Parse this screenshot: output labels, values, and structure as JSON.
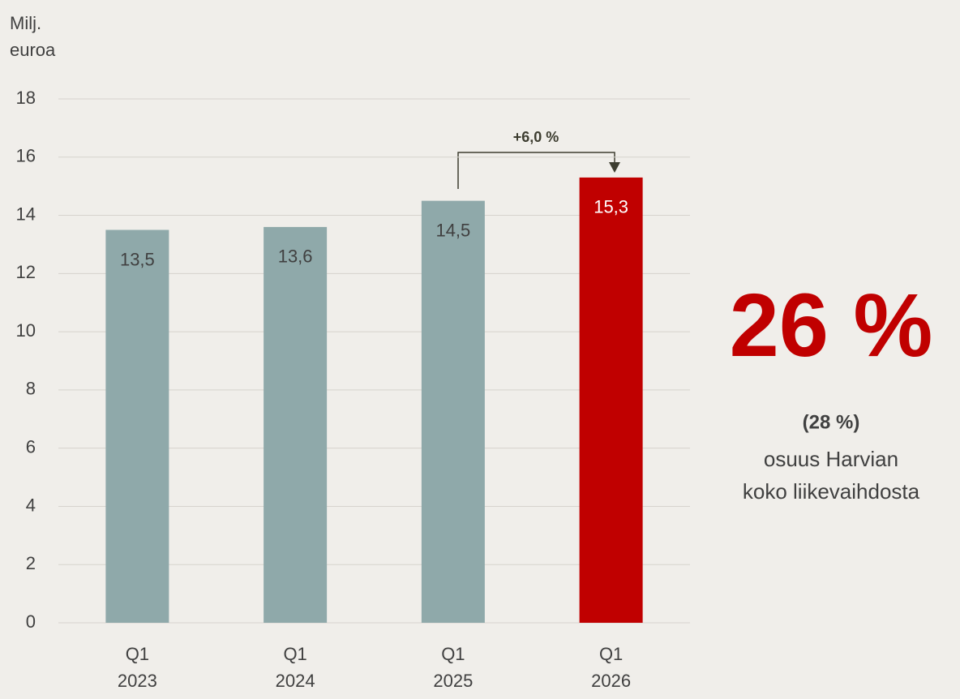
{
  "chart_data": {
    "type": "bar",
    "y_label": "Milj. euroa",
    "categories": [
      "Q1 2023",
      "Q1 2024",
      "Q1 2025",
      "Q1 2026"
    ],
    "values": [
      13.5,
      13.6,
      14.5,
      15.3
    ],
    "value_labels": [
      "13,5",
      "13,6",
      "14,5",
      "15,3"
    ],
    "colors": [
      "#8fa9aa",
      "#8fa9aa",
      "#8fa9aa",
      "#c00000"
    ],
    "ylim": [
      0,
      18
    ],
    "yticks": [
      0,
      2,
      4,
      6,
      8,
      10,
      12,
      14,
      16,
      18
    ],
    "grid": true,
    "annotations": {
      "change": "+6,0 %",
      "share": "26 %",
      "share_prev": "(28 %)",
      "share_text_1": "osuus Harvian",
      "share_text_2": "koko liikevaihdosta"
    }
  }
}
